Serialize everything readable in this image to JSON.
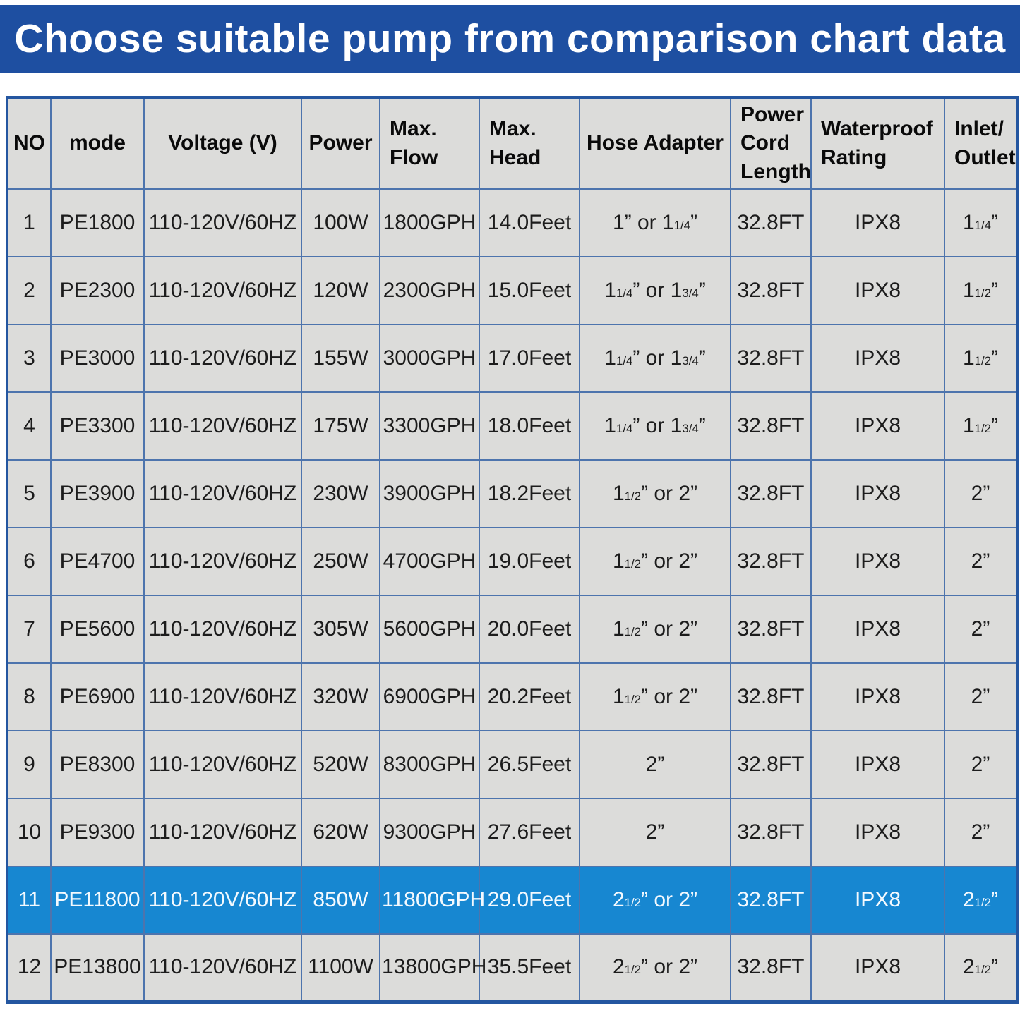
{
  "title": "Choose suitable pump from comparison chart data",
  "colors": {
    "banner_bg": "#1e4fa1",
    "banner_text": "#ffffff",
    "cell_bg": "#dcdcda",
    "grid_border": "#4d74ad",
    "outer_border": "#2456a0",
    "highlight_bg": "#1787d1",
    "highlight_text": "#f3f9fe"
  },
  "chart_data": {
    "type": "table",
    "title": "Choose suitable pump from comparison chart data",
    "highlighted_row_no": "11",
    "columns": [
      {
        "id": "no",
        "label": "NO"
      },
      {
        "id": "mode",
        "label": "mode"
      },
      {
        "id": "voltage",
        "label": "Voltage (V)"
      },
      {
        "id": "power",
        "label": "Power"
      },
      {
        "id": "max_flow",
        "label": "Max.\nFlow"
      },
      {
        "id": "max_head",
        "label": "Max.\nHead"
      },
      {
        "id": "hose_adapter",
        "label": "Hose Adapter"
      },
      {
        "id": "power_cord_length",
        "label": "Power\nCord\nLength"
      },
      {
        "id": "waterproof_rating",
        "label": "Waterproof\nRating"
      },
      {
        "id": "inlet_outlet",
        "label": "Inlet/\nOutlet"
      }
    ],
    "rows": [
      {
        "no": "1",
        "mode": "PE1800",
        "voltage": "110-120V/60HZ",
        "power": "100W",
        "max_flow": "1800GPH",
        "max_head": "14.0Feet",
        "hose_adapter": "1” or 1{1/4}”",
        "power_cord_length": "32.8FT",
        "waterproof_rating": "IPX8",
        "inlet_outlet": "1{1/4}”"
      },
      {
        "no": "2",
        "mode": "PE2300",
        "voltage": "110-120V/60HZ",
        "power": "120W",
        "max_flow": "2300GPH",
        "max_head": "15.0Feet",
        "hose_adapter": "1{1/4}” or 1{3/4}”",
        "power_cord_length": "32.8FT",
        "waterproof_rating": "IPX8",
        "inlet_outlet": "1{1/2}”"
      },
      {
        "no": "3",
        "mode": "PE3000",
        "voltage": "110-120V/60HZ",
        "power": "155W",
        "max_flow": "3000GPH",
        "max_head": "17.0Feet",
        "hose_adapter": "1{1/4}” or 1{3/4}”",
        "power_cord_length": "32.8FT",
        "waterproof_rating": "IPX8",
        "inlet_outlet": "1{1/2}”"
      },
      {
        "no": "4",
        "mode": "PE3300",
        "voltage": "110-120V/60HZ",
        "power": "175W",
        "max_flow": "3300GPH",
        "max_head": "18.0Feet",
        "hose_adapter": "1{1/4}” or 1{3/4}”",
        "power_cord_length": "32.8FT",
        "waterproof_rating": "IPX8",
        "inlet_outlet": "1{1/2}”"
      },
      {
        "no": "5",
        "mode": "PE3900",
        "voltage": "110-120V/60HZ",
        "power": "230W",
        "max_flow": "3900GPH",
        "max_head": "18.2Feet",
        "hose_adapter": "1{1/2}” or 2”",
        "power_cord_length": "32.8FT",
        "waterproof_rating": "IPX8",
        "inlet_outlet": "2”"
      },
      {
        "no": "6",
        "mode": "PE4700",
        "voltage": "110-120V/60HZ",
        "power": "250W",
        "max_flow": "4700GPH",
        "max_head": "19.0Feet",
        "hose_adapter": "1{1/2}” or 2”",
        "power_cord_length": "32.8FT",
        "waterproof_rating": "IPX8",
        "inlet_outlet": "2”"
      },
      {
        "no": "7",
        "mode": "PE5600",
        "voltage": "110-120V/60HZ",
        "power": "305W",
        "max_flow": "5600GPH",
        "max_head": "20.0Feet",
        "hose_adapter": "1{1/2}” or 2”",
        "power_cord_length": "32.8FT",
        "waterproof_rating": "IPX8",
        "inlet_outlet": "2”"
      },
      {
        "no": "8",
        "mode": "PE6900",
        "voltage": "110-120V/60HZ",
        "power": "320W",
        "max_flow": "6900GPH",
        "max_head": "20.2Feet",
        "hose_adapter": "1{1/2}” or 2”",
        "power_cord_length": "32.8FT",
        "waterproof_rating": "IPX8",
        "inlet_outlet": "2”"
      },
      {
        "no": "9",
        "mode": "PE8300",
        "voltage": "110-120V/60HZ",
        "power": "520W",
        "max_flow": "8300GPH",
        "max_head": "26.5Feet",
        "hose_adapter": "2”",
        "power_cord_length": "32.8FT",
        "waterproof_rating": "IPX8",
        "inlet_outlet": "2”"
      },
      {
        "no": "10",
        "mode": "PE9300",
        "voltage": "110-120V/60HZ",
        "power": "620W",
        "max_flow": "9300GPH",
        "max_head": "27.6Feet",
        "hose_adapter": "2”",
        "power_cord_length": "32.8FT",
        "waterproof_rating": "IPX8",
        "inlet_outlet": "2”"
      },
      {
        "no": "11",
        "mode": "PE11800",
        "voltage": "110-120V/60HZ",
        "power": "850W",
        "max_flow": "11800GPH",
        "max_head": "29.0Feet",
        "hose_adapter": "2{1/2}” or 2”",
        "power_cord_length": "32.8FT",
        "waterproof_rating": "IPX8",
        "inlet_outlet": "2{1/2}”"
      },
      {
        "no": "12",
        "mode": "PE13800",
        "voltage": "110-120V/60HZ",
        "power": "1100W",
        "max_flow": "13800GPH",
        "max_head": "35.5Feet",
        "hose_adapter": "2{1/2}” or 2”",
        "power_cord_length": "32.8FT",
        "waterproof_rating": "IPX8",
        "inlet_outlet": "2{1/2}”"
      }
    ]
  }
}
